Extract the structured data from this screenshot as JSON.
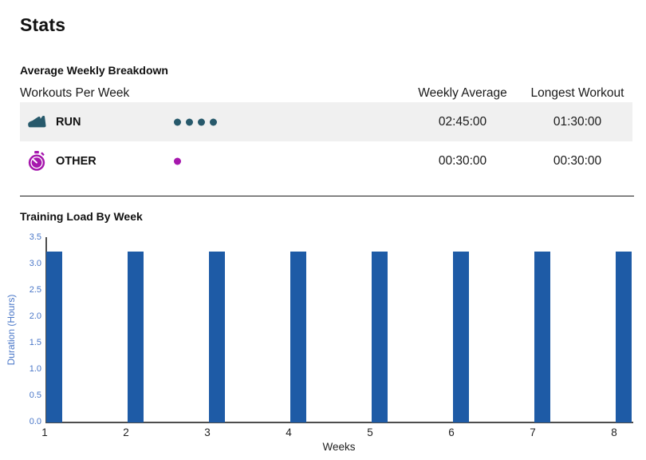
{
  "page": {
    "title": "Stats"
  },
  "breakdown": {
    "heading": "Average Weekly Breakdown",
    "table": {
      "col1_header": "Workouts Per Week",
      "col2_header": "Weekly Average",
      "col3_header": "Longest Workout",
      "rows": [
        {
          "activity": "RUN",
          "icon": "running-shoe-icon",
          "dots": 4,
          "dot_color": "#27596b",
          "icon_color": "#27596b",
          "weekly_average": "02:45:00",
          "longest_workout": "01:30:00",
          "highlighted": true
        },
        {
          "activity": "OTHER",
          "icon": "stopwatch-icon",
          "dots": 1,
          "dot_color": "#a617ad",
          "icon_color": "#a617ad",
          "weekly_average": "00:30:00",
          "longest_workout": "00:30:00",
          "highlighted": false
        }
      ]
    }
  },
  "training_load": {
    "heading": "Training Load By Week"
  },
  "chart_data": {
    "type": "bar",
    "title": "Training Load By Week",
    "categories": [
      "1",
      "2",
      "3",
      "4",
      "5",
      "6",
      "7",
      "8"
    ],
    "values": [
      3.25,
      3.25,
      3.25,
      3.25,
      3.25,
      3.25,
      3.25,
      3.25
    ],
    "xlabel": "Weeks",
    "ylabel": "Duration (Hours)",
    "ylim": [
      0,
      3.5
    ],
    "ytick_labels": [
      "0.0",
      "0.5",
      "1.0",
      "1.5",
      "2.0",
      "2.5",
      "3.0",
      "3.5"
    ],
    "grid": false,
    "legend_position": "none",
    "bar_color": "#1e5ba6",
    "axis_text_color": "#4a77c8",
    "xtick_color": "#222222"
  },
  "colors": {
    "highlight_row_bg": "#f0f0f0",
    "run_accent": "#27596b",
    "other_accent": "#a617ad",
    "bar_blue": "#1e5ba6",
    "axis_blue": "#4a77c8"
  }
}
